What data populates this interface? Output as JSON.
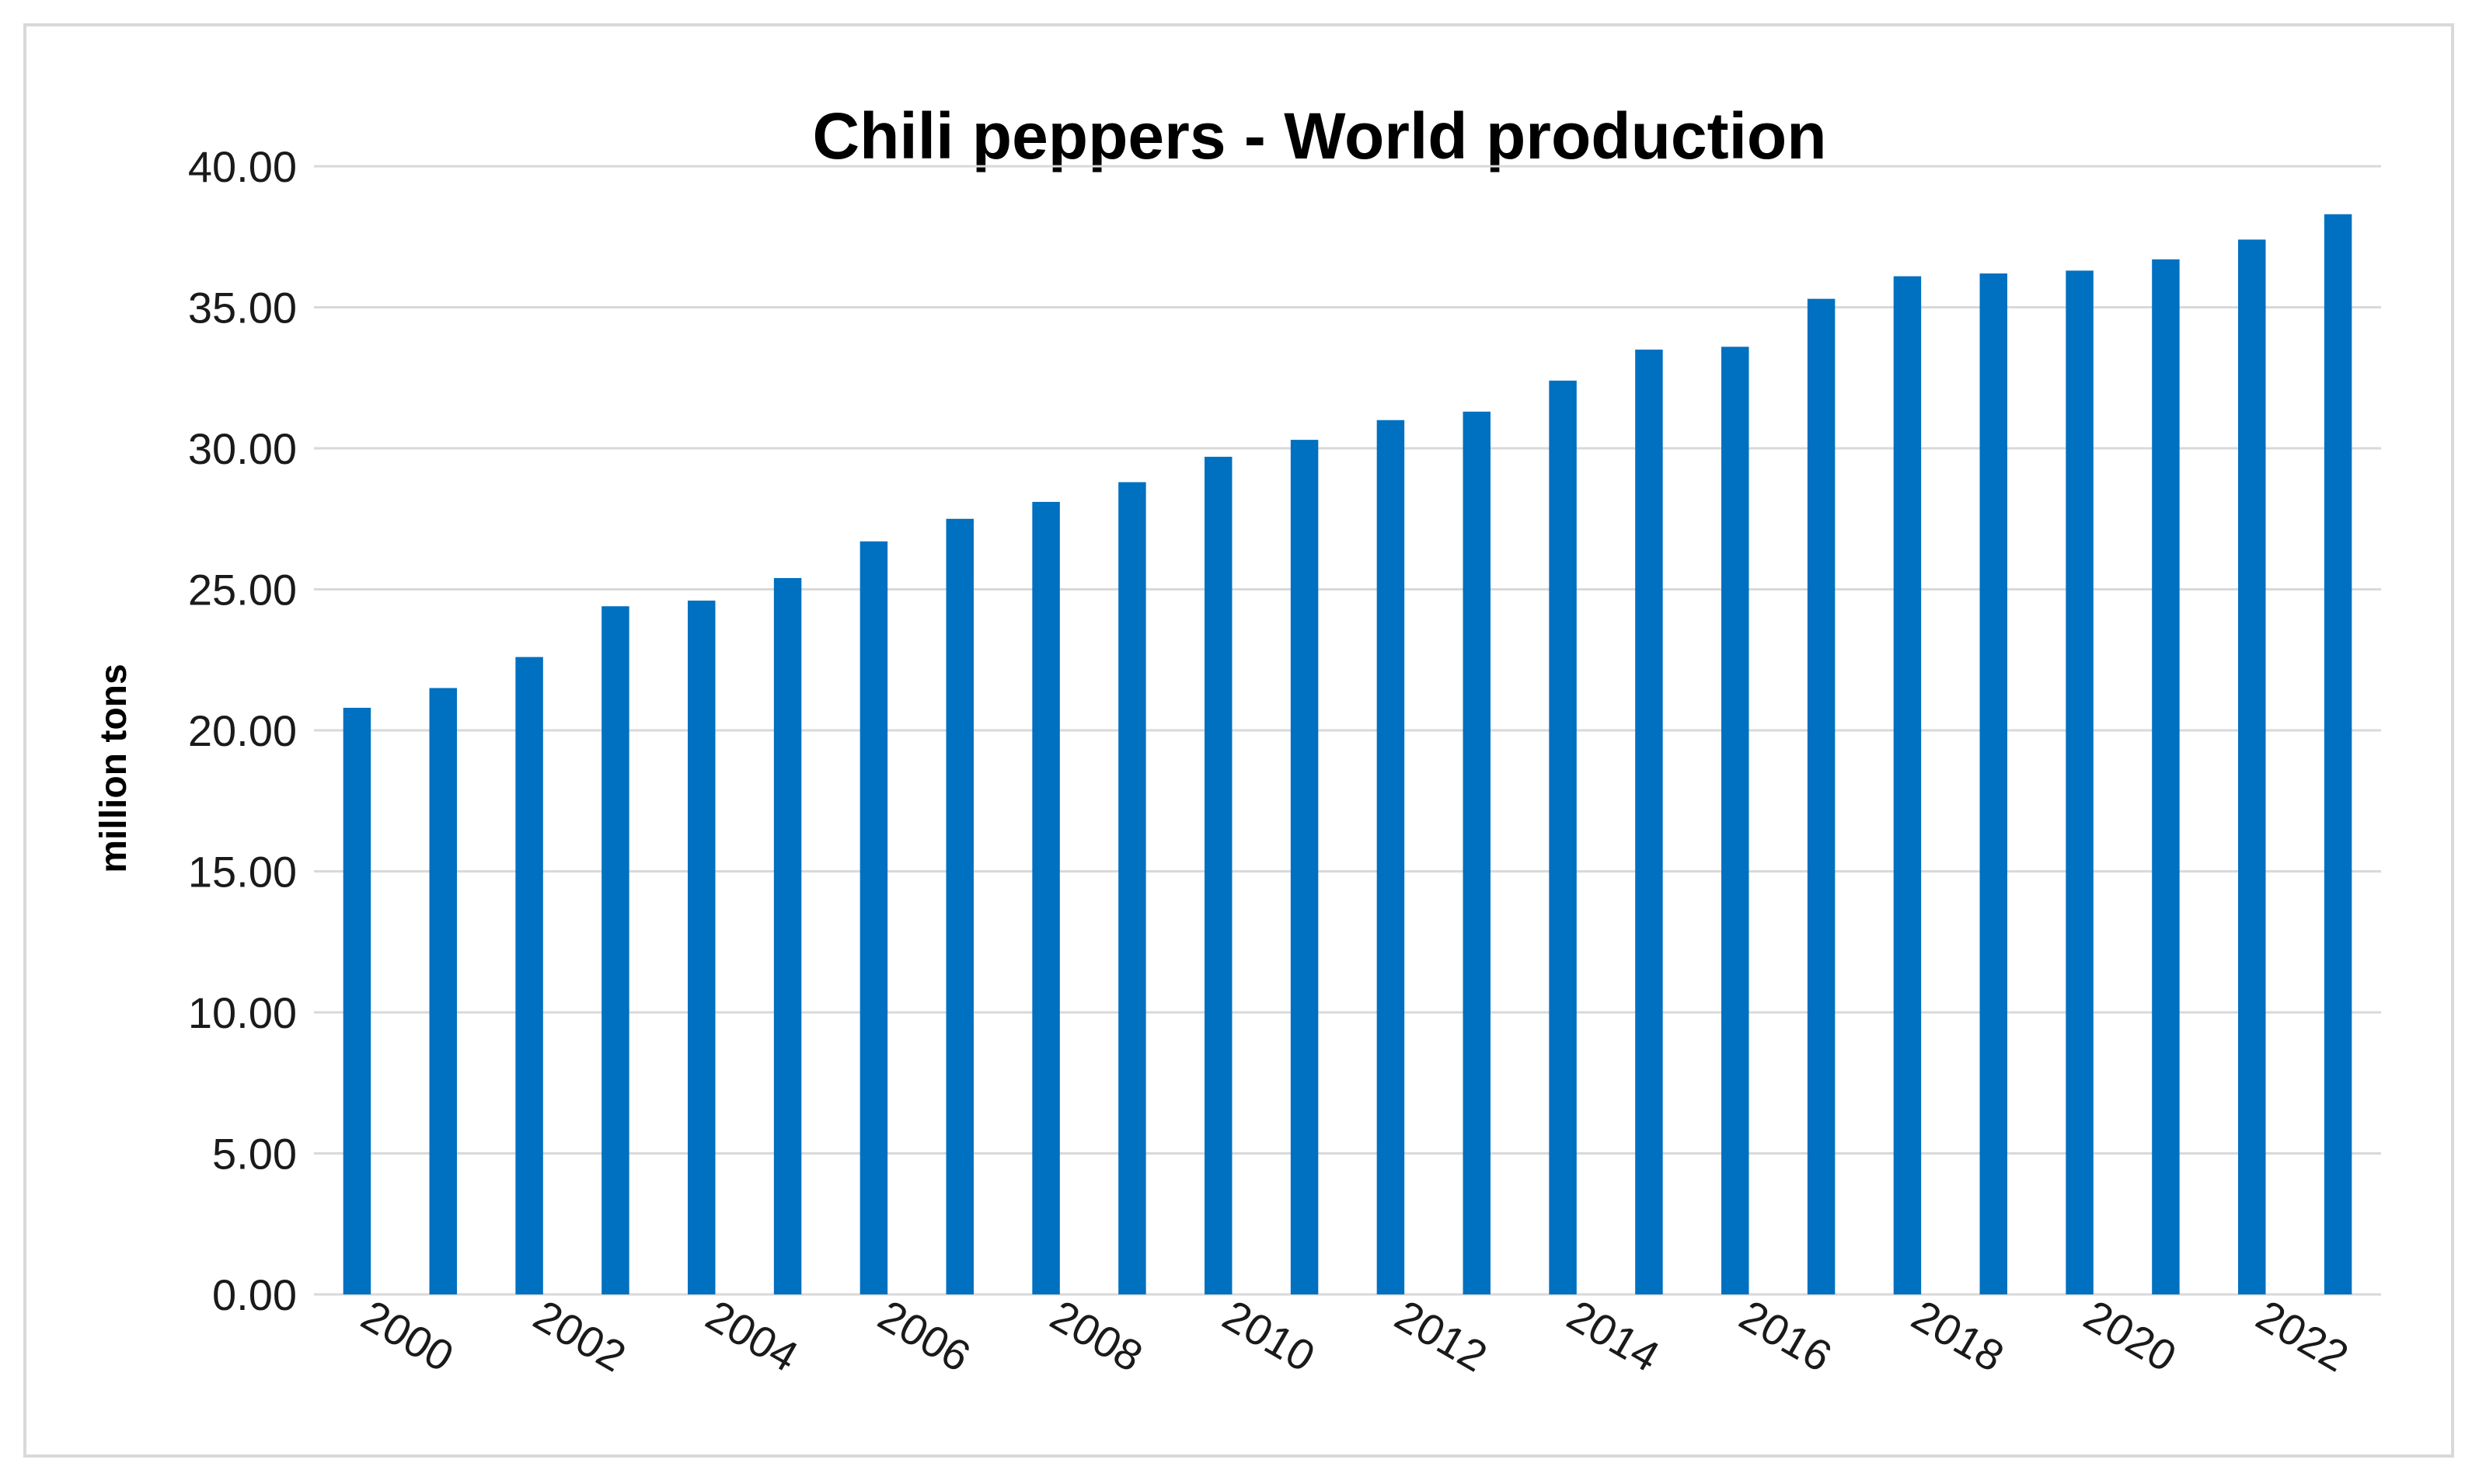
{
  "chart_data": {
    "type": "bar",
    "title": "Chili peppers - World production",
    "xlabel": "",
    "ylabel": "million tons",
    "ylim": [
      0,
      40
    ],
    "yticks": [
      "0.00",
      "5.00",
      "10.00",
      "15.00",
      "20.00",
      "25.00",
      "30.00",
      "35.00",
      "40.00"
    ],
    "x_tick_labels": [
      "2000",
      "2002",
      "2004",
      "2006",
      "2008",
      "2010",
      "2012",
      "2014",
      "2016",
      "2018",
      "2020",
      "2022"
    ],
    "categories": [
      "2000",
      "2001",
      "2002",
      "2003",
      "2004",
      "2005",
      "2006",
      "2007",
      "2008",
      "2009",
      "2010",
      "2011",
      "2012",
      "2013",
      "2014",
      "2015",
      "2016",
      "2017",
      "2018",
      "2019",
      "2020",
      "2021",
      "2022",
      "2023"
    ],
    "values": [
      20.8,
      21.5,
      22.6,
      24.4,
      24.6,
      25.4,
      26.7,
      27.5,
      28.1,
      28.8,
      29.7,
      30.3,
      31.0,
      31.3,
      32.4,
      33.5,
      33.6,
      35.3,
      36.1,
      36.2,
      36.3,
      36.7,
      37.4,
      38.3
    ],
    "bar_color": "#0070c0",
    "grid": true,
    "legend": false
  }
}
